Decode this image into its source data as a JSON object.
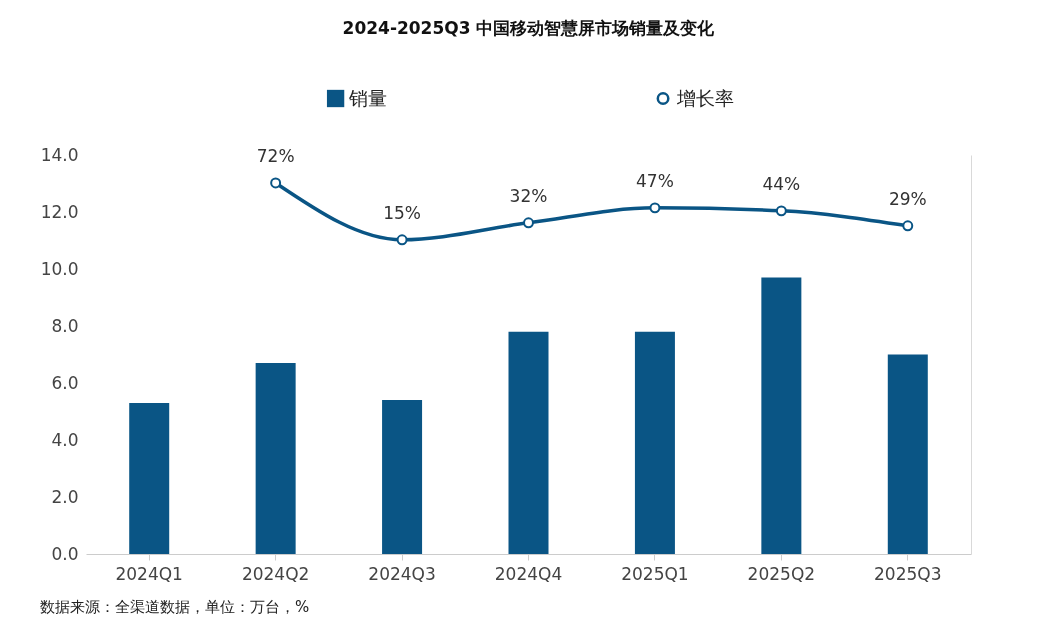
{
  "chart_data": {
    "type": "bar",
    "title": "2024-2025Q3 中国移动智慧屏市场销量及变化",
    "categories": [
      "2024Q1",
      "2024Q2",
      "2024Q3",
      "2024Q4",
      "2025Q1",
      "2025Q2",
      "2025Q3"
    ],
    "series": [
      {
        "name": "销量",
        "color": "#0a5585",
        "values": [
          5.3,
          6.7,
          5.4,
          7.8,
          7.8,
          9.7,
          7.0
        ]
      },
      {
        "name": "增长率",
        "type": "line",
        "axis": "y2",
        "color": "#0a5585",
        "marker": "circle",
        "values": [
          null,
          72,
          15,
          32,
          47,
          44,
          29
        ],
        "value_labels": [
          null,
          "72%",
          "15%",
          "32%",
          "47%",
          "44%",
          "29%"
        ]
      }
    ],
    "ylim": [
      0,
      14
    ],
    "yticks": [
      {
        "value": 0,
        "label": "0.0"
      },
      {
        "value": 2,
        "label": "2.0"
      },
      {
        "value": 4,
        "label": "4.0"
      },
      {
        "value": 6,
        "label": "6.0"
      },
      {
        "value": 8,
        "label": "8.0"
      },
      {
        "value": 10,
        "label": "10.0"
      },
      {
        "value": 12,
        "label": "12.0"
      },
      {
        "value": 14,
        "label": "14.0"
      }
    ],
    "y2lim": [
      -300,
      100
    ],
    "legend": "top",
    "annotations": [
      "数据来源：全渠道数据，单位：万台，%"
    ]
  }
}
